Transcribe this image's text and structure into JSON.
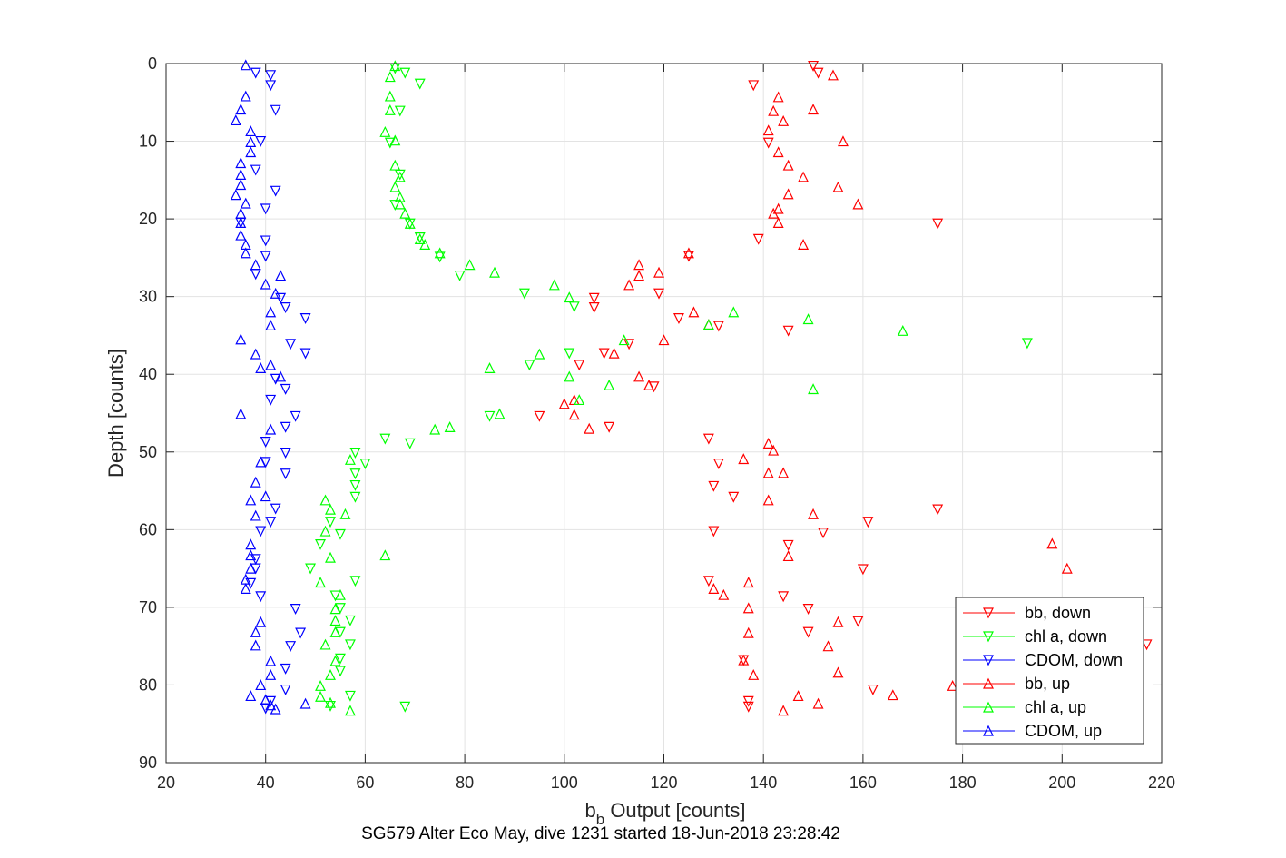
{
  "chart_data": {
    "type": "scatter",
    "title": "",
    "xlabel_main": "b",
    "xlabel_sub": "b",
    "xlabel_rest": " Output [counts]",
    "ylabel": "Depth [counts]",
    "caption": "SG579 Alter Eco May, dive 1231 started 18-Jun-2018 23:28:42",
    "xlim": [
      20,
      220
    ],
    "ylim": [
      0,
      90
    ],
    "y_reversed": true,
    "xticks": [
      20,
      40,
      60,
      80,
      100,
      120,
      140,
      160,
      180,
      200,
      220
    ],
    "yticks": [
      0,
      10,
      20,
      30,
      40,
      50,
      60,
      70,
      80,
      90
    ],
    "grid": true,
    "legend_position": "bottom-right",
    "series": [
      {
        "name": "bb, down",
        "color": "#ff0000",
        "marker": "triangle-down",
        "points": [
          [
            150,
            0.3
          ],
          [
            151,
            1.2
          ],
          [
            138,
            2.8
          ],
          [
            141,
            10.2
          ],
          [
            175,
            20.6
          ],
          [
            139,
            22.6
          ],
          [
            125,
            24.8
          ],
          [
            119,
            29.6
          ],
          [
            106,
            30.2
          ],
          [
            106,
            31.4
          ],
          [
            123,
            32.8
          ],
          [
            131,
            33.8
          ],
          [
            145,
            34.4
          ],
          [
            113,
            36.1
          ],
          [
            108,
            37.3
          ],
          [
            103,
            38.8
          ],
          [
            118,
            41.6
          ],
          [
            95,
            45.4
          ],
          [
            109,
            46.8
          ],
          [
            129,
            48.3
          ],
          [
            131,
            51.5
          ],
          [
            134,
            55.8
          ],
          [
            130,
            54.4
          ],
          [
            130,
            60.2
          ],
          [
            152,
            60.4
          ],
          [
            161,
            59.0
          ],
          [
            145,
            62.0
          ],
          [
            175,
            57.4
          ],
          [
            160,
            65.1
          ],
          [
            129,
            66.6
          ],
          [
            144,
            68.6
          ],
          [
            149,
            70.2
          ],
          [
            159,
            71.8
          ],
          [
            149,
            73.2
          ],
          [
            217,
            74.8
          ],
          [
            136,
            76.8
          ],
          [
            162,
            80.6
          ],
          [
            137,
            82.1
          ],
          [
            137,
            82.8
          ]
        ]
      },
      {
        "name": "chl a, down",
        "color": "#00ff00",
        "marker": "triangle-down",
        "points": [
          [
            66,
            0.6
          ],
          [
            68,
            1.2
          ],
          [
            71,
            2.6
          ],
          [
            67,
            6.1
          ],
          [
            65,
            10.2
          ],
          [
            67,
            14.3
          ],
          [
            66,
            18.2
          ],
          [
            69,
            20.6
          ],
          [
            71,
            22.4
          ],
          [
            75,
            24.9
          ],
          [
            79,
            27.3
          ],
          [
            92,
            29.6
          ],
          [
            102,
            31.3
          ],
          [
            193,
            36.0
          ],
          [
            93,
            38.8
          ],
          [
            101,
            37.3
          ],
          [
            85,
            45.4
          ],
          [
            64,
            48.3
          ],
          [
            69,
            48.9
          ],
          [
            58,
            50.1
          ],
          [
            60,
            51.5
          ],
          [
            58,
            52.8
          ],
          [
            58,
            54.3
          ],
          [
            58,
            55.8
          ],
          [
            53,
            59.0
          ],
          [
            55,
            60.6
          ],
          [
            51,
            61.9
          ],
          [
            49,
            65.0
          ],
          [
            58,
            66.6
          ],
          [
            54,
            68.5
          ],
          [
            55,
            70.1
          ],
          [
            57,
            71.7
          ],
          [
            55,
            73.2
          ],
          [
            57,
            74.8
          ],
          [
            55,
            76.6
          ],
          [
            55,
            78.2
          ],
          [
            57,
            81.4
          ],
          [
            53,
            82.7
          ],
          [
            68,
            82.8
          ]
        ]
      },
      {
        "name": "CDOM, down",
        "color": "#0000ff",
        "marker": "triangle-down",
        "points": [
          [
            38,
            1.2
          ],
          [
            41,
            1.5
          ],
          [
            41,
            2.8
          ],
          [
            42,
            6.0
          ],
          [
            39,
            10.0
          ],
          [
            38,
            13.7
          ],
          [
            42,
            16.4
          ],
          [
            40,
            18.7
          ],
          [
            35,
            20.5
          ],
          [
            40,
            22.8
          ],
          [
            40,
            24.8
          ],
          [
            38,
            27.1
          ],
          [
            44,
            31.4
          ],
          [
            43,
            30.2
          ],
          [
            48,
            32.8
          ],
          [
            45,
            36.1
          ],
          [
            48,
            37.3
          ],
          [
            42,
            40.6
          ],
          [
            44,
            41.9
          ],
          [
            41,
            43.3
          ],
          [
            46,
            45.4
          ],
          [
            44,
            46.8
          ],
          [
            40,
            48.7
          ],
          [
            44,
            50.1
          ],
          [
            40,
            51.3
          ],
          [
            44,
            52.8
          ],
          [
            42,
            57.3
          ],
          [
            39,
            60.2
          ],
          [
            41,
            59.0
          ],
          [
            38,
            63.8
          ],
          [
            38,
            65.0
          ],
          [
            37,
            66.9
          ],
          [
            39,
            68.6
          ],
          [
            46,
            70.2
          ],
          [
            47,
            73.3
          ],
          [
            45,
            75.0
          ],
          [
            44,
            77.9
          ],
          [
            44,
            80.6
          ],
          [
            41,
            82.1
          ],
          [
            40,
            83.0
          ]
        ]
      },
      {
        "name": "bb, up",
        "color": "#ff0000",
        "marker": "triangle-up",
        "points": [
          [
            154,
            1.5
          ],
          [
            143,
            4.3
          ],
          [
            142,
            6.1
          ],
          [
            144,
            7.4
          ],
          [
            150,
            5.9
          ],
          [
            141,
            8.6
          ],
          [
            156,
            10.0
          ],
          [
            143,
            11.4
          ],
          [
            145,
            13.1
          ],
          [
            148,
            14.6
          ],
          [
            155,
            15.9
          ],
          [
            145,
            16.8
          ],
          [
            159,
            18.1
          ],
          [
            143,
            18.7
          ],
          [
            142,
            19.3
          ],
          [
            143,
            20.5
          ],
          [
            148,
            23.3
          ],
          [
            125,
            24.4
          ],
          [
            115,
            25.9
          ],
          [
            119,
            26.9
          ],
          [
            115,
            27.3
          ],
          [
            113,
            28.5
          ],
          [
            126,
            32.0
          ],
          [
            129,
            33.6
          ],
          [
            120,
            35.6
          ],
          [
            110,
            37.3
          ],
          [
            115,
            40.3
          ],
          [
            117,
            41.4
          ],
          [
            102,
            43.3
          ],
          [
            100,
            43.8
          ],
          [
            102,
            45.2
          ],
          [
            105,
            47.0
          ],
          [
            141,
            48.9
          ],
          [
            142,
            49.8
          ],
          [
            136,
            50.9
          ],
          [
            141,
            52.7
          ],
          [
            144,
            52.7
          ],
          [
            141,
            56.2
          ],
          [
            150,
            58.0
          ],
          [
            145,
            63.4
          ],
          [
            137,
            66.8
          ],
          [
            130,
            67.6
          ],
          [
            137,
            70.1
          ],
          [
            132,
            68.4
          ],
          [
            155,
            71.9
          ],
          [
            136,
            76.8
          ],
          [
            137,
            73.3
          ],
          [
            153,
            75.0
          ],
          [
            155,
            78.4
          ],
          [
            138,
            78.7
          ],
          [
            147,
            81.4
          ],
          [
            151,
            82.4
          ],
          [
            144,
            83.3
          ],
          [
            166,
            81.3
          ],
          [
            178,
            80.1
          ],
          [
            198,
            61.8
          ],
          [
            201,
            65.0
          ]
        ]
      },
      {
        "name": "chl a, up",
        "color": "#00ff00",
        "marker": "triangle-up",
        "points": [
          [
            66,
            0.3
          ],
          [
            65,
            1.7
          ],
          [
            65,
            4.2
          ],
          [
            65,
            6.0
          ],
          [
            64,
            8.8
          ],
          [
            66,
            9.9
          ],
          [
            66,
            13.1
          ],
          [
            67,
            14.6
          ],
          [
            66,
            15.9
          ],
          [
            67,
            17.2
          ],
          [
            67,
            18.1
          ],
          [
            68,
            19.3
          ],
          [
            69,
            20.6
          ],
          [
            71,
            22.6
          ],
          [
            72,
            23.3
          ],
          [
            75,
            24.4
          ],
          [
            81,
            25.9
          ],
          [
            86,
            26.9
          ],
          [
            98,
            28.5
          ],
          [
            101,
            30.1
          ],
          [
            134,
            32.0
          ],
          [
            129,
            33.6
          ],
          [
            149,
            32.9
          ],
          [
            168,
            34.4
          ],
          [
            112,
            35.6
          ],
          [
            95,
            37.4
          ],
          [
            101,
            40.3
          ],
          [
            109,
            41.4
          ],
          [
            150,
            41.9
          ],
          [
            103,
            43.3
          ],
          [
            85,
            39.2
          ],
          [
            87,
            45.1
          ],
          [
            77,
            46.8
          ],
          [
            74,
            47.1
          ],
          [
            57,
            51.0
          ],
          [
            52,
            56.2
          ],
          [
            53,
            57.4
          ],
          [
            56,
            58.0
          ],
          [
            52,
            60.2
          ],
          [
            64,
            63.3
          ],
          [
            51,
            66.8
          ],
          [
            53,
            63.6
          ],
          [
            55,
            68.4
          ],
          [
            54,
            70.2
          ],
          [
            54,
            71.7
          ],
          [
            54,
            73.2
          ],
          [
            52,
            74.8
          ],
          [
            54,
            76.9
          ],
          [
            53,
            78.7
          ],
          [
            51,
            80.1
          ],
          [
            51,
            81.5
          ],
          [
            53,
            82.3
          ],
          [
            57,
            83.3
          ]
        ]
      },
      {
        "name": "CDOM, up",
        "color": "#0000ff",
        "marker": "triangle-up",
        "points": [
          [
            36,
            0.2
          ],
          [
            36,
            4.2
          ],
          [
            35,
            5.9
          ],
          [
            34,
            7.3
          ],
          [
            37,
            8.7
          ],
          [
            37,
            10.1
          ],
          [
            37,
            11.4
          ],
          [
            35,
            12.8
          ],
          [
            35,
            14.3
          ],
          [
            35,
            15.6
          ],
          [
            34,
            16.9
          ],
          [
            36,
            18.0
          ],
          [
            35,
            19.3
          ],
          [
            35,
            20.5
          ],
          [
            35,
            22.1
          ],
          [
            36,
            23.3
          ],
          [
            36,
            24.4
          ],
          [
            38,
            25.9
          ],
          [
            43,
            27.3
          ],
          [
            40,
            28.4
          ],
          [
            42,
            29.6
          ],
          [
            41,
            32.0
          ],
          [
            41,
            33.7
          ],
          [
            35,
            35.5
          ],
          [
            38,
            37.4
          ],
          [
            41,
            38.8
          ],
          [
            39,
            39.2
          ],
          [
            43,
            40.3
          ],
          [
            35,
            45.1
          ],
          [
            41,
            47.1
          ],
          [
            39,
            51.3
          ],
          [
            38,
            53.9
          ],
          [
            37,
            56.2
          ],
          [
            40,
            55.7
          ],
          [
            38,
            58.2
          ],
          [
            37,
            61.9
          ],
          [
            37,
            63.3
          ],
          [
            37,
            65.0
          ],
          [
            36,
            66.4
          ],
          [
            36,
            67.6
          ],
          [
            39,
            71.9
          ],
          [
            38,
            73.2
          ],
          [
            38,
            74.9
          ],
          [
            41,
            76.9
          ],
          [
            41,
            78.7
          ],
          [
            39,
            80.0
          ],
          [
            37,
            81.4
          ],
          [
            40,
            81.9
          ],
          [
            41,
            82.6
          ],
          [
            42,
            83.1
          ],
          [
            48,
            82.4
          ]
        ]
      }
    ]
  }
}
